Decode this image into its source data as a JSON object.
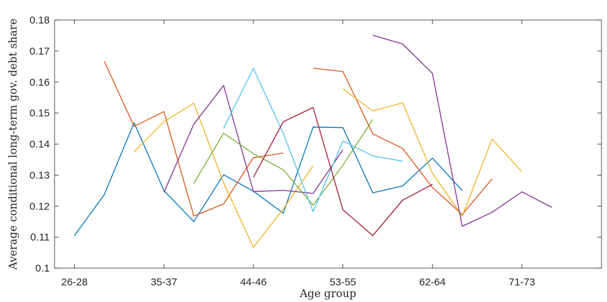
{
  "chart_data": {
    "type": "line",
    "title": "",
    "xlabel": "Age group",
    "ylabel": "Average conditional long-term gov. debt share",
    "xlim": [
      25,
      80
    ],
    "ylim": [
      0.1,
      0.18
    ],
    "x_ticks": [
      27,
      36,
      45,
      54,
      63,
      72
    ],
    "x_tick_labels": [
      "26-28",
      "35-37",
      "44-46",
      "53-55",
      "62-64",
      "71-73"
    ],
    "y_ticks": [
      0.1,
      0.11,
      0.12,
      0.13,
      0.14,
      0.15,
      0.16,
      0.17,
      0.18
    ],
    "y_tick_labels": [
      "0.1",
      "0.11",
      "0.12",
      "0.13",
      "0.14",
      "0.15",
      "0.16",
      "0.17",
      "0.18"
    ],
    "grid": false,
    "legend": "none",
    "series": [
      {
        "color": "#0072BD",
        "x": [
          27,
          30,
          33,
          36,
          39,
          42,
          45,
          48,
          51,
          54,
          57,
          60,
          63,
          66
        ],
        "y": [
          0.1105,
          0.1237,
          0.1469,
          0.125,
          0.115,
          0.1301,
          0.1248,
          0.1177,
          0.1455,
          0.1453,
          0.1243,
          0.1265,
          0.1355,
          0.125
        ]
      },
      {
        "color": "#D95319",
        "x": [
          30,
          33,
          36,
          39,
          42,
          45,
          48
        ],
        "y": [
          0.1667,
          0.1457,
          0.1505,
          0.1168,
          0.1207,
          0.1356,
          0.1371
        ]
      },
      {
        "color": "#D95319",
        "x": [
          51,
          54,
          57,
          60,
          63,
          66,
          69
        ],
        "y": [
          0.1645,
          0.1634,
          0.1433,
          0.1386,
          0.126,
          0.1173,
          0.1288
        ]
      },
      {
        "color": "#EDB120",
        "x": [
          33,
          36,
          39,
          42,
          45,
          48,
          51
        ],
        "y": [
          0.1375,
          0.1472,
          0.1532,
          0.1275,
          0.1067,
          0.1191,
          0.133
        ]
      },
      {
        "color": "#EDB120",
        "x": [
          54,
          57,
          60,
          63,
          66,
          69,
          72
        ],
        "y": [
          0.1578,
          0.1507,
          0.1533,
          0.1306,
          0.1168,
          0.1416,
          0.1311
        ]
      },
      {
        "color": "#7E2F8E",
        "x": [
          36,
          39,
          42,
          45,
          48,
          51,
          54
        ],
        "y": [
          0.1245,
          0.1464,
          0.1589,
          0.1247,
          0.1251,
          0.1241,
          0.1382
        ]
      },
      {
        "color": "#7E2F8E",
        "x": [
          57,
          60,
          63,
          66,
          69,
          72,
          75
        ],
        "y": [
          0.1751,
          0.1723,
          0.1628,
          0.1135,
          0.118,
          0.1246,
          0.1196
        ]
      },
      {
        "color": "#77AC30",
        "x": [
          39,
          42,
          45,
          48,
          51,
          54,
          57
        ],
        "y": [
          0.1273,
          0.1435,
          0.1369,
          0.1317,
          0.1203,
          0.1332,
          0.1479
        ]
      },
      {
        "color": "#4DBEEE",
        "x": [
          42,
          45,
          48,
          51,
          54,
          57,
          60
        ],
        "y": [
          0.1451,
          0.1644,
          0.1435,
          0.1182,
          0.141,
          0.1362,
          0.1345
        ]
      },
      {
        "color": "#A2142F",
        "x": [
          45,
          48,
          51,
          54,
          57,
          60,
          63
        ],
        "y": [
          0.1293,
          0.1472,
          0.1518,
          0.1188,
          0.1105,
          0.1219,
          0.127
        ]
      }
    ]
  }
}
